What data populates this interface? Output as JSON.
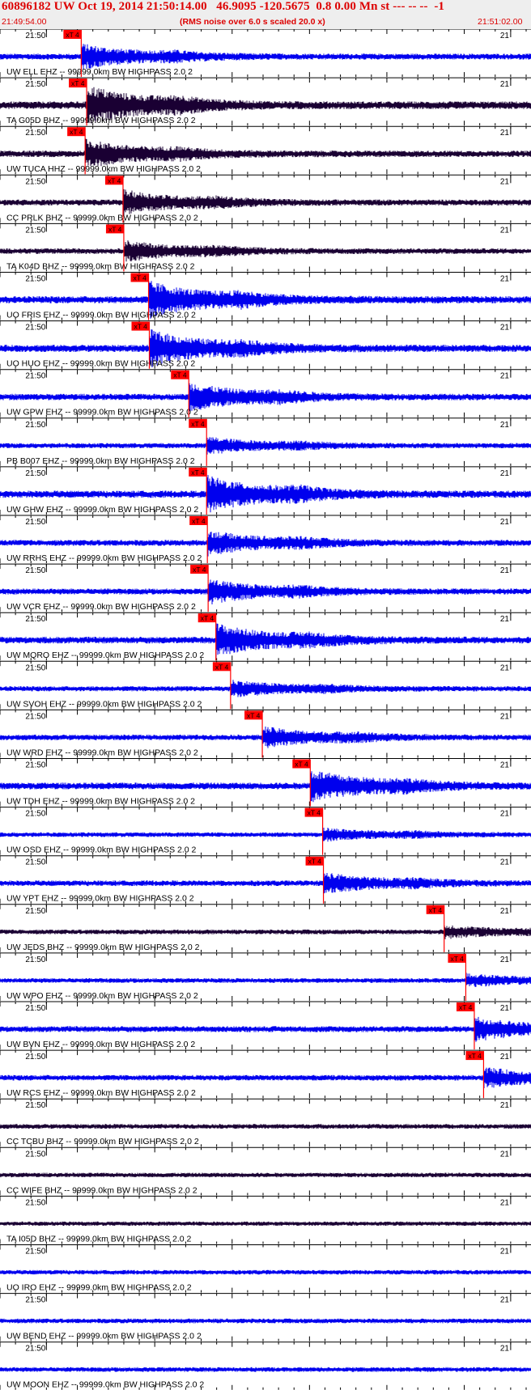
{
  "header": {
    "title": "60896182 UW Oct 19, 2014 21:50:14.00   46.9095 -120.5675  0.8 0.00 Mn st --- -- --  -1",
    "start_time": "21:49:54.00",
    "noise_note": "(RMS noise over 6.0 s scaled 20.0 x)",
    "end_time": "21:51:02.00"
  },
  "colors": {
    "header_bg": "#eeeeee",
    "title": "#dd0000",
    "trace_blue": "#0000ee",
    "trace_dark": "#1a0033",
    "pick_marker": "#ff0000",
    "label_text": "#000000"
  },
  "chart_data": {
    "type": "line",
    "title": "60896182 UW Oct 19, 2014 21:50:14.00   46.9095 -120.5675  0.8 0.00 Mn st --- -- --  -1",
    "x_range_seconds": [
      0,
      68
    ],
    "time_label_left": "21:50",
    "time_label_right": "21",
    "pick_label": "xT 4",
    "traces": [
      {
        "label": "UW ELL EHZ -- 99999.0km BW  HIGHPASS  2.0  2",
        "color": "blue",
        "pick_s": 10.5,
        "amp": 0.6
      },
      {
        "label": "TA G05D BHZ -- 99999.0km BW  HIGHPASS  2.0  2",
        "color": "dark",
        "pick_s": 11.2,
        "amp": 1.0
      },
      {
        "label": "UW TUCA HHZ -- 99999.0km BW  HIGHPASS  2.0  2",
        "color": "dark",
        "pick_s": 11.0,
        "amp": 0.7
      },
      {
        "label": "CC PRLK BHZ -- 99999.0km BW  HIGHPASS  2.0  2",
        "color": "dark",
        "pick_s": 15.9,
        "amp": 0.6
      },
      {
        "label": "TA K04D BHZ -- 99999.0km BW  HIGHPASS  2.0  2",
        "color": "dark",
        "pick_s": 16.0,
        "amp": 0.5
      },
      {
        "label": "UO FRIS EHZ -- 99999.0km BW  HIGHPASS  2.0  2",
        "color": "blue",
        "pick_s": 19.2,
        "amp": 0.9
      },
      {
        "label": "UO HUO EHZ -- 99999.0km BW  HIGHPASS  2.0  2",
        "color": "blue",
        "pick_s": 19.3,
        "amp": 0.9
      },
      {
        "label": "UW GPW EHZ -- 99999.0km BW  HIGHPASS  2.0  2",
        "color": "blue",
        "pick_s": 24.4,
        "amp": 0.7
      },
      {
        "label": "PB B007 EHZ -- 99999.0km BW  HIGHPASS  2.0  2",
        "color": "blue",
        "pick_s": 26.7,
        "amp": 0.4
      },
      {
        "label": "UW GHW EHZ -- 99999.0km BW  HIGHPASS  2.0  2",
        "color": "blue",
        "pick_s": 26.7,
        "amp": 0.9
      },
      {
        "label": "UW RRHS EHZ -- 99999.0km BW  HIGHPASS  2.0  2",
        "color": "blue",
        "pick_s": 26.8,
        "amp": 0.6
      },
      {
        "label": "UW VCR EHZ -- 99999.0km BW  HIGHPASS  2.0  2",
        "color": "blue",
        "pick_s": 26.9,
        "amp": 0.6
      },
      {
        "label": "UW MQRO EHZ -- 99999.0km BW  HIGHPASS  2.0  2",
        "color": "blue",
        "pick_s": 27.9,
        "amp": 0.8
      },
      {
        "label": "UW SVOH EHZ -- 99999.0km BW  HIGHPASS  2.0  2",
        "color": "blue",
        "pick_s": 29.8,
        "amp": 0.4
      },
      {
        "label": "UW WRD EHZ -- 99999.0km BW  HIGHPASS  2.0  2",
        "color": "blue",
        "pick_s": 33.9,
        "amp": 0.5
      },
      {
        "label": "UW TDH EHZ -- 99999.0km BW  HIGHPASS  2.0  2",
        "color": "blue",
        "pick_s": 40.1,
        "amp": 0.8
      },
      {
        "label": "UW OSD EHZ -- 99999.0km BW  HIGHPASS  2.0  2",
        "color": "blue",
        "pick_s": 41.7,
        "amp": 0.3
      },
      {
        "label": "UW YPT EHZ -- 99999.0km BW  HIGHPASS  2.0  2",
        "color": "blue",
        "pick_s": 41.8,
        "amp": 0.5
      },
      {
        "label": "UW JEDS BHZ -- 99999.0km BW  HIGHPASS  2.0  2",
        "color": "dark",
        "pick_s": 57.4,
        "amp": 0.3
      },
      {
        "label": "UW WPO EHZ -- 99999.0km BW  HIGHPASS  2.0  2",
        "color": "blue",
        "pick_s": 60.2,
        "amp": 0.3
      },
      {
        "label": "UW BVN EHZ -- 99999.0km BW  HIGHPASS  2.0  2",
        "color": "blue",
        "pick_s": 61.3,
        "amp": 0.6
      },
      {
        "label": "UW RCS EHZ -- 99999.0km BW  HIGHPASS  2.0  2",
        "color": "blue",
        "pick_s": 62.5,
        "amp": 0.5
      },
      {
        "label": "CC TCBU BHZ -- 99999.0km BW  HIGHPASS  2.0  2",
        "color": "dark",
        "pick_s": null,
        "amp": 0.3
      },
      {
        "label": "CC WIFE BHZ -- 99999.0km BW  HIGHPASS  2.0  2",
        "color": "dark",
        "pick_s": null,
        "amp": 0.25
      },
      {
        "label": "TA I05D BHZ -- 99999.0km BW  HIGHPASS  2.0  2",
        "color": "dark",
        "pick_s": null,
        "amp": 0.2
      },
      {
        "label": "UO IRO EHZ -- 99999.0km BW  HIGHPASS  2.0  2",
        "color": "blue",
        "pick_s": null,
        "amp": 0.25
      },
      {
        "label": "UW BEND EHZ -- 99999.0km BW  HIGHPASS  2.0  2",
        "color": "blue",
        "pick_s": null,
        "amp": 0.3
      },
      {
        "label": "UW MOON EHZ -- 99999.0km BW  HIGHPASS  2.0  2",
        "color": "blue",
        "pick_s": null,
        "amp": 0.3
      }
    ]
  }
}
